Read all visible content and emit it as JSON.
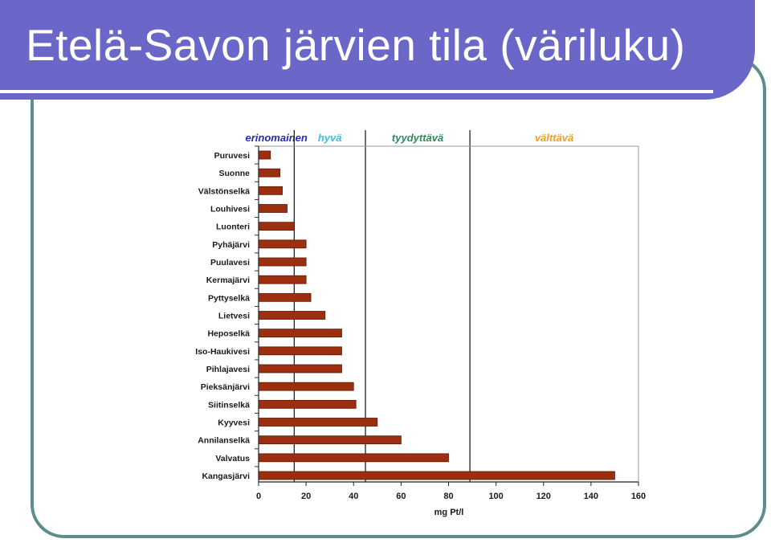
{
  "slide": {
    "title": "Etelä-Savon järvien tila (väriluku)"
  },
  "chart_data": {
    "type": "bar",
    "orientation": "horizontal",
    "title": "",
    "xlabel": "mg Pt/l",
    "ylabel": "",
    "xlim": [
      0,
      160
    ],
    "xticks": [
      0,
      20,
      40,
      60,
      80,
      100,
      120,
      140,
      160
    ],
    "grid": false,
    "bar_color": "#9b2f0f",
    "categories": [
      "Puruvesi",
      "Suonne",
      "Välstönselkä",
      "Louhivesi",
      "Luonteri",
      "Pyhäjärvi",
      "Puulavesi",
      "Kermajärvi",
      "Pyttyselkä",
      "Lietvesi",
      "Heposelkä",
      "Iso-Haukivesi",
      "Pihlajavesi",
      "Pieksänjärvi",
      "Siitinselkä",
      "Kyyvesi",
      "Annilanselkä",
      "Valvatus",
      "Kangasjärvi"
    ],
    "values": [
      5,
      9,
      10,
      12,
      15,
      20,
      20,
      20,
      22,
      28,
      35,
      35,
      35,
      40,
      41,
      50,
      60,
      80,
      150
    ],
    "classes": [
      {
        "label": "erinomainen",
        "color": "#2b2bb0",
        "from": 0,
        "to": 15
      },
      {
        "label": "hyvä",
        "color": "#35c4e0",
        "from": 15,
        "to": 45
      },
      {
        "label": "tyydyttävä",
        "color": "#2f8a5c",
        "from": 45,
        "to": 89
      },
      {
        "label": "välttävä",
        "color": "#f0a020",
        "from": 89,
        "to": 160
      }
    ]
  }
}
